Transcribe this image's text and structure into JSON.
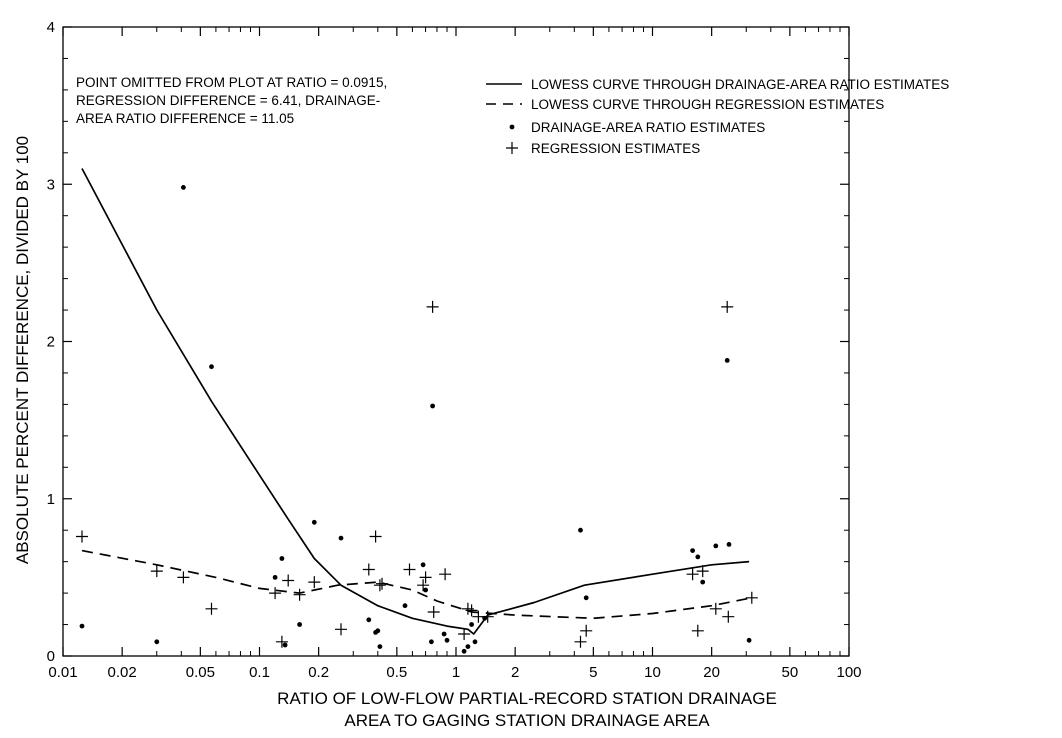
{
  "chart_data": {
    "type": "scatter",
    "title": "",
    "xlabel": [
      "RATIO OF LOW-FLOW PARTIAL-RECORD STATION DRAINAGE",
      "AREA TO GAGING STATION DRAINAGE AREA"
    ],
    "ylabel": "ABSOLUTE PERCENT DIFFERENCE, DIVIDED BY 100",
    "x_scale": "log",
    "xlim": [
      0.01,
      100
    ],
    "ylim": [
      0,
      4
    ],
    "x_ticks": [
      {
        "value": 0.01,
        "label": "0.01"
      },
      {
        "value": 0.02,
        "label": "0.02"
      },
      {
        "value": 0.05,
        "label": "0.05"
      },
      {
        "value": 0.1,
        "label": "0.1"
      },
      {
        "value": 0.2,
        "label": "0.2"
      },
      {
        "value": 0.5,
        "label": "0.5"
      },
      {
        "value": 1,
        "label": "1"
      },
      {
        "value": 2,
        "label": "2"
      },
      {
        "value": 5,
        "label": "5"
      },
      {
        "value": 10,
        "label": "10"
      },
      {
        "value": 20,
        "label": "20"
      },
      {
        "value": 50,
        "label": "50"
      },
      {
        "value": 100,
        "label": "100"
      }
    ],
    "y_ticks": [
      {
        "value": 0,
        "label": "0"
      },
      {
        "value": 1,
        "label": "1"
      },
      {
        "value": 2,
        "label": "2"
      },
      {
        "value": 3,
        "label": "3"
      },
      {
        "value": 4,
        "label": "4"
      }
    ],
    "grid": false,
    "legend_position": "top-right",
    "annotation": [
      "POINT OMITTED FROM PLOT AT RATIO = 0.0915,",
      "REGRESSION DIFFERENCE = 6.41, DRAINAGE-",
      "AREA RATIO DIFFERENCE = 11.05"
    ],
    "series": [
      {
        "name": "LOWESS CURVE THROUGH DRAINAGE-AREA RATIO ESTIMATES",
        "kind": "line",
        "style": "solid",
        "points": [
          [
            0.0125,
            3.1
          ],
          [
            0.03,
            2.2
          ],
          [
            0.057,
            1.62
          ],
          [
            0.1,
            1.15
          ],
          [
            0.14,
            0.87
          ],
          [
            0.19,
            0.62
          ],
          [
            0.26,
            0.45
          ],
          [
            0.4,
            0.32
          ],
          [
            0.6,
            0.24
          ],
          [
            0.9,
            0.19
          ],
          [
            1.15,
            0.17
          ],
          [
            1.23,
            0.14
          ],
          [
            1.45,
            0.26
          ],
          [
            2.5,
            0.34
          ],
          [
            4.5,
            0.45
          ],
          [
            10,
            0.52
          ],
          [
            20,
            0.58
          ],
          [
            31,
            0.6
          ]
        ]
      },
      {
        "name": "LOWESS CURVE THROUGH REGRESSION ESTIMATES",
        "kind": "line",
        "style": "dashed",
        "points": [
          [
            0.0125,
            0.67
          ],
          [
            0.03,
            0.58
          ],
          [
            0.06,
            0.5
          ],
          [
            0.1,
            0.43
          ],
          [
            0.16,
            0.4
          ],
          [
            0.25,
            0.45
          ],
          [
            0.4,
            0.47
          ],
          [
            0.6,
            0.42
          ],
          [
            0.8,
            0.35
          ],
          [
            1.2,
            0.28
          ],
          [
            2,
            0.26
          ],
          [
            5,
            0.24
          ],
          [
            10,
            0.27
          ],
          [
            20,
            0.32
          ],
          [
            32,
            0.37
          ]
        ]
      },
      {
        "name": "DRAINAGE-AREA RATIO ESTIMATES",
        "kind": "dot",
        "points": [
          [
            0.0125,
            0.19
          ],
          [
            0.03,
            0.09
          ],
          [
            0.041,
            2.98
          ],
          [
            0.057,
            1.84
          ],
          [
            0.12,
            0.5
          ],
          [
            0.13,
            0.62
          ],
          [
            0.135,
            0.07
          ],
          [
            0.16,
            0.2
          ],
          [
            0.19,
            0.85
          ],
          [
            0.26,
            0.75
          ],
          [
            0.36,
            0.23
          ],
          [
            0.39,
            0.15
          ],
          [
            0.4,
            0.16
          ],
          [
            0.41,
            0.06
          ],
          [
            0.55,
            0.32
          ],
          [
            0.68,
            0.58
          ],
          [
            0.7,
            0.42
          ],
          [
            0.75,
            0.09
          ],
          [
            0.76,
            1.59
          ],
          [
            0.87,
            0.14
          ],
          [
            0.9,
            0.1
          ],
          [
            1.1,
            0.03
          ],
          [
            1.15,
            0.06
          ],
          [
            1.2,
            0.2
          ],
          [
            1.25,
            0.09
          ],
          [
            1.4,
            0.24
          ],
          [
            4.3,
            0.8
          ],
          [
            4.6,
            0.37
          ],
          [
            16,
            0.67
          ],
          [
            17,
            0.63
          ],
          [
            18,
            0.47
          ],
          [
            21,
            0.7
          ],
          [
            24,
            1.88
          ],
          [
            24.5,
            0.71
          ],
          [
            31,
            0.1
          ]
        ]
      },
      {
        "name": "REGRESSION ESTIMATES",
        "kind": "plus",
        "points": [
          [
            0.0125,
            0.76
          ],
          [
            0.03,
            0.54
          ],
          [
            0.041,
            0.5
          ],
          [
            0.057,
            0.3
          ],
          [
            0.12,
            0.4
          ],
          [
            0.13,
            0.09
          ],
          [
            0.14,
            0.48
          ],
          [
            0.16,
            0.39
          ],
          [
            0.19,
            0.47
          ],
          [
            0.26,
            0.17
          ],
          [
            0.36,
            0.55
          ],
          [
            0.39,
            0.76
          ],
          [
            0.41,
            0.45
          ],
          [
            0.42,
            0.46
          ],
          [
            0.58,
            0.55
          ],
          [
            0.68,
            0.45
          ],
          [
            0.7,
            0.5
          ],
          [
            0.76,
            2.22
          ],
          [
            0.77,
            0.28
          ],
          [
            0.88,
            0.52
          ],
          [
            1.1,
            0.14
          ],
          [
            1.15,
            0.3
          ],
          [
            1.2,
            0.29
          ],
          [
            1.3,
            0.25
          ],
          [
            1.45,
            0.25
          ],
          [
            4.3,
            0.09
          ],
          [
            4.6,
            0.16
          ],
          [
            16,
            0.52
          ],
          [
            17,
            0.16
          ],
          [
            18,
            0.54
          ],
          [
            21,
            0.3
          ],
          [
            24,
            2.22
          ],
          [
            24.3,
            0.25
          ],
          [
            32,
            0.37
          ]
        ]
      }
    ]
  }
}
